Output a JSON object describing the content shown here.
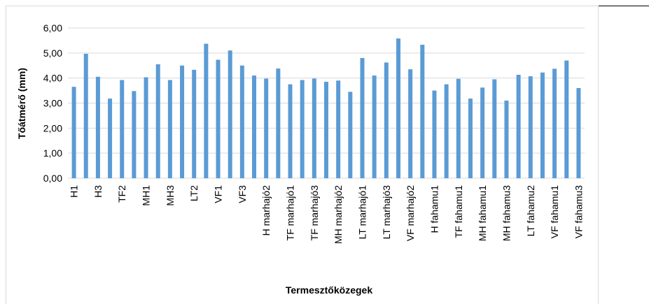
{
  "chart_data": {
    "type": "bar",
    "x_label": "Termesztőközegek",
    "y_label": "Tőátmérő (mm)",
    "categories": [
      "H1",
      null,
      "H3",
      null,
      "TF2",
      null,
      "MH1",
      null,
      "MH3",
      null,
      "LT2",
      null,
      "VF1",
      null,
      "VF3",
      null,
      "H marhajó2",
      null,
      "TF marhajó1",
      null,
      "TF marhajó3",
      null,
      "MH marhajó2",
      null,
      "LT marhajó1",
      null,
      "LT marhajó3",
      null,
      "VF marhajó2",
      null,
      "H fahamu1",
      null,
      "TF fahamu1",
      null,
      "MH fahamu1",
      null,
      "MH fahamu3",
      null,
      "LT fahamu2",
      null,
      "VF fahamu1",
      null,
      "VF fahamu3"
    ],
    "values": [
      3.65,
      4.97,
      4.05,
      3.18,
      3.92,
      3.48,
      4.03,
      4.55,
      3.92,
      4.5,
      4.33,
      5.37,
      4.73,
      5.1,
      4.5,
      4.1,
      3.98,
      4.38,
      3.75,
      3.92,
      3.98,
      3.85,
      3.9,
      3.45,
      4.8,
      4.1,
      4.62,
      5.58,
      4.35,
      5.33,
      3.5,
      3.75,
      3.97,
      3.18,
      3.62,
      3.95,
      3.1,
      4.13,
      4.07,
      4.22,
      4.37,
      4.7,
      3.6
    ],
    "color": "#5b9bd5",
    "ylim": [
      0,
      6
    ],
    "yticks": [
      {
        "value": 0,
        "label": "0,00"
      },
      {
        "value": 1,
        "label": "1,00"
      },
      {
        "value": 2,
        "label": "2,00"
      },
      {
        "value": 3,
        "label": "3,00"
      },
      {
        "value": 4,
        "label": "4,00"
      },
      {
        "value": 5,
        "label": "5,00"
      },
      {
        "value": 6,
        "label": "6,00"
      }
    ],
    "grid": true
  }
}
